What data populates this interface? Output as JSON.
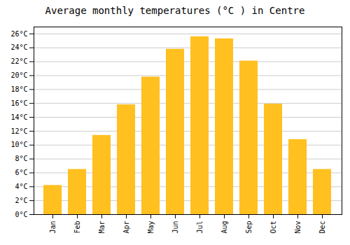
{
  "chart_data": {
    "type": "bar",
    "title": "Average monthly temperatures (°C ) in Centre",
    "categories": [
      "Jan",
      "Feb",
      "Mar",
      "Apr",
      "May",
      "Jun",
      "Jul",
      "Aug",
      "Sep",
      "Oct",
      "Nov",
      "Dec"
    ],
    "values": [
      4.2,
      6.5,
      11.4,
      15.8,
      19.8,
      23.8,
      25.6,
      25.3,
      22.1,
      15.9,
      10.8,
      6.5
    ],
    "color": "#FFC020",
    "ylim": [
      0,
      27
    ],
    "yticks": [
      {
        "value": 0,
        "label": "0°C"
      },
      {
        "value": 2,
        "label": "2°C"
      },
      {
        "value": 4,
        "label": "4°C"
      },
      {
        "value": 6,
        "label": "6°C"
      },
      {
        "value": 8,
        "label": "8°C"
      },
      {
        "value": 10,
        "label": "10°C"
      },
      {
        "value": 12,
        "label": "12°C"
      },
      {
        "value": 14,
        "label": "14°C"
      },
      {
        "value": 16,
        "label": "16°C"
      },
      {
        "value": 18,
        "label": "18°C"
      },
      {
        "value": 20,
        "label": "20°C"
      },
      {
        "value": 22,
        "label": "22°C"
      },
      {
        "value": 24,
        "label": "24°C"
      },
      {
        "value": 26,
        "label": "26°C"
      }
    ],
    "grid": true
  }
}
